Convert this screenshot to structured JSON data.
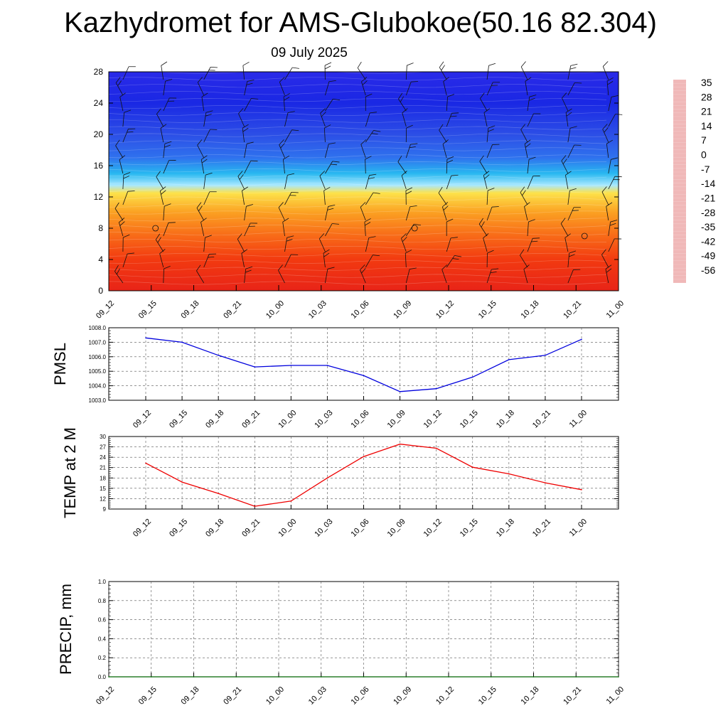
{
  "title": "Kazhydromet for AMS-Glubokoe(50.16 82.304)",
  "subtitle": "09 July 2025",
  "chart_data": [
    {
      "type": "heatmap",
      "name": "temperature-wind-profile",
      "x_tick_labels": [
        "09_12",
        "09_15",
        "09_18",
        "09_21",
        "10_00",
        "10_03",
        "10_06",
        "10_09",
        "10_12",
        "10_15",
        "10_18",
        "10_21",
        "11_00"
      ],
      "y_tick_labels": [
        "0",
        "4",
        "8",
        "12",
        "16",
        "20",
        "24",
        "28"
      ],
      "ylim": [
        0,
        28
      ],
      "colorbar": {
        "labels": [
          "35",
          "28",
          "21",
          "14",
          "7",
          "0",
          "-7",
          "-14",
          "-21",
          "-28",
          "-35",
          "-42",
          "-49",
          "-56"
        ],
        "colors": [
          "#f0b8b8",
          "#e01818",
          "#ec3a0c",
          "#f86818",
          "#fca020",
          "#fde040",
          "#fff8a0",
          "#a8e8ff",
          "#20b8f0",
          "#2070f0",
          "#3050e8",
          "#2828e0",
          "#1010e0",
          "#9030f0"
        ]
      },
      "layers": [
        {
          "y": 0,
          "color": "#e82418"
        },
        {
          "y": 4,
          "color": "#f23a10"
        },
        {
          "y": 7,
          "color": "#f86a18"
        },
        {
          "y": 10,
          "color": "#fba022"
        },
        {
          "y": 12.5,
          "color": "#fde24a"
        },
        {
          "y": 13.5,
          "color": "#a8e8ff"
        },
        {
          "y": 15,
          "color": "#28b8f0"
        },
        {
          "y": 17,
          "color": "#2f72ee"
        },
        {
          "y": 20,
          "color": "#2c4ee6"
        },
        {
          "y": 24,
          "color": "#1a28e4"
        },
        {
          "y": 28,
          "color": "#2a2ae8"
        }
      ]
    },
    {
      "type": "line",
      "name": "PMSL",
      "ylabel": "PMSL",
      "categories": [
        "09_12",
        "09_15",
        "09_18",
        "09_21",
        "10_00",
        "10_03",
        "10_06",
        "10_09",
        "10_12",
        "10_15",
        "10_18",
        "10_21",
        "11_00"
      ],
      "values": [
        1007.3,
        1007.0,
        1006.1,
        1005.3,
        1005.4,
        1005.4,
        1004.7,
        1003.6,
        1003.8,
        1004.6,
        1005.8,
        1006.1,
        1007.2
      ],
      "ylim": [
        1003.0,
        1008.0
      ],
      "yticks": [
        "1003.0",
        "1004.0",
        "1005.0",
        "1006.0",
        "1007.0",
        "1008.0"
      ],
      "color": "#0000dd",
      "grid": true
    },
    {
      "type": "line",
      "name": "TEMP",
      "ylabel": "TEMP at 2 M",
      "categories": [
        "09_12",
        "09_15",
        "09_18",
        "09_21",
        "10_00",
        "10_03",
        "10_06",
        "10_09",
        "10_12",
        "10_15",
        "10_18",
        "10_21",
        "11_00"
      ],
      "values": [
        22.3,
        16.8,
        13.5,
        9.8,
        11.3,
        18.0,
        24.2,
        27.8,
        26.6,
        21.1,
        19.2,
        16.6,
        14.6
      ],
      "ylim": [
        9,
        30
      ],
      "yticks": [
        "9",
        "12",
        "15",
        "18",
        "21",
        "24",
        "27",
        "30"
      ],
      "color": "#ee0000",
      "grid": true
    },
    {
      "type": "line",
      "name": "PRECIP",
      "ylabel": "PRECIP, mm",
      "categories": [
        "09_12",
        "09_15",
        "09_18",
        "09_21",
        "10_00",
        "10_03",
        "10_06",
        "10_09",
        "10_12",
        "10_15",
        "10_18",
        "10_21",
        "11_00"
      ],
      "values": [
        0,
        0,
        0,
        0,
        0,
        0,
        0,
        0,
        0,
        0,
        0,
        0,
        0
      ],
      "ylim": [
        0,
        1.0
      ],
      "yticks": [
        "0.0",
        "0.2",
        "0.4",
        "0.6",
        "0.8",
        "1.0"
      ],
      "color": "#006400",
      "grid": true
    }
  ]
}
